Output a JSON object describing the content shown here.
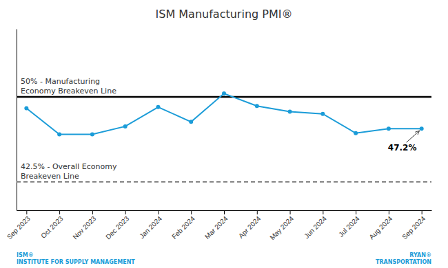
{
  "chart_data": {
    "type": "line",
    "title": "ISM Manufacturing PMI®",
    "categories": [
      "Sep 2023",
      "Oct 2023",
      "Nov 2023",
      "Dec 2023",
      "Jan 2024",
      "Feb 2024",
      "Mar 2024",
      "Apr 2024",
      "May 2024",
      "Jun 2024",
      "Jul 2024",
      "Aug 2024",
      "Sep 2024"
    ],
    "values": [
      49.0,
      46.7,
      46.7,
      47.4,
      49.1,
      47.8,
      50.3,
      49.2,
      48.7,
      48.5,
      46.8,
      47.2,
      47.2
    ],
    "color": "#1B9CD8",
    "marker": "circle",
    "line_style": "solid",
    "ylim": [
      40,
      56
    ],
    "tick_labels": "x",
    "grid": false,
    "reference_lines": [
      {
        "value": 50.0,
        "color": "#000000",
        "line_style": "solid",
        "labels": [
          "50% - Manufacturing",
          "Economy Breakeven Line"
        ]
      },
      {
        "value": 42.5,
        "color": "#555555",
        "line_style": "dashed",
        "labels": [
          "42.5% - Overall Economy",
          "Breakeven Line"
        ]
      }
    ],
    "annotations": [
      {
        "text": "47.2%",
        "x": "Sep 2024",
        "y": 47.2
      }
    ],
    "logos": [
      {
        "lines": [
          "ISM®",
          "INSTITUTE FOR SUPPLY MANAGEMENT"
        ],
        "color": "#1B9CD8"
      },
      {
        "lines": [
          "RYAN®",
          "TRANSPORTATION"
        ],
        "color": "#1B9CD8"
      }
    ]
  }
}
